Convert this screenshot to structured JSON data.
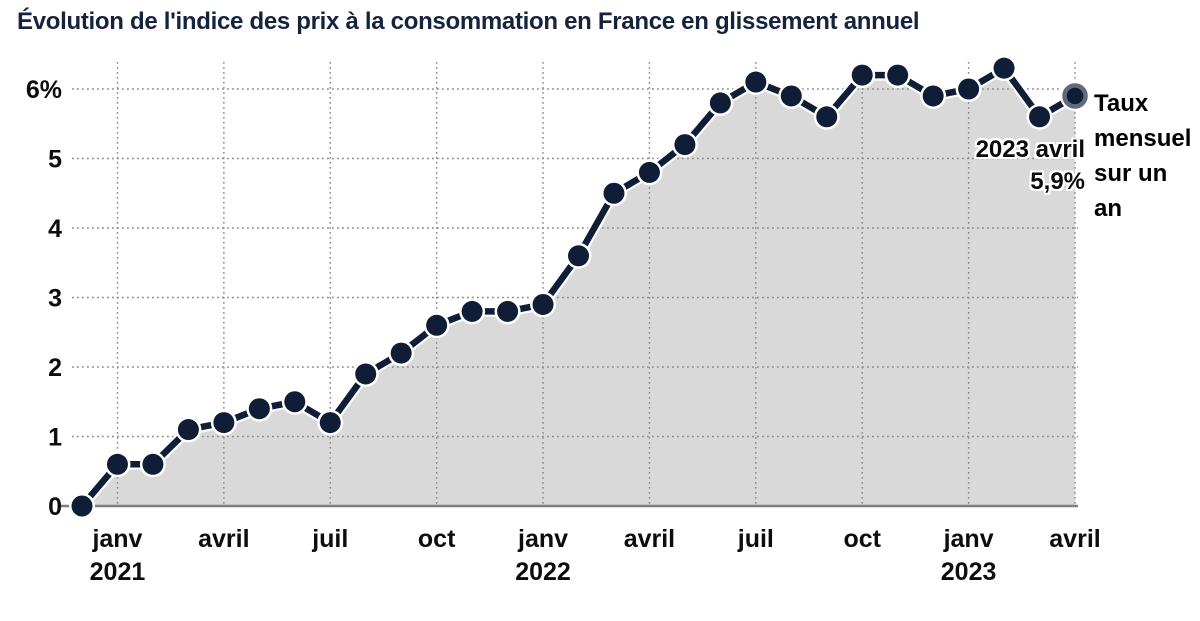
{
  "header": {
    "title": "Évolution de l'indice des prix à la consommation en France en glissement annuel"
  },
  "annotation": {
    "date_label": "2023 avril",
    "value_label": "5,9%"
  },
  "side_label": {
    "text": "Taux mensuel sur un an"
  },
  "chart_data": {
    "type": "area",
    "title": "Évolution de l'indice des prix à la consommation en France en glissement annuel",
    "xlabel": "",
    "ylabel": "Taux mensuel sur un an (%)",
    "ylim": [
      0,
      6.5
    ],
    "grid": true,
    "legend_position": "none",
    "x": [
      "déc 2020",
      "janv 2021",
      "févr 2021",
      "mars 2021",
      "avril 2021",
      "mai 2021",
      "juin 2021",
      "juil 2021",
      "août 2021",
      "sept 2021",
      "oct 2021",
      "nov 2021",
      "déc 2021",
      "janv 2022",
      "févr 2022",
      "mars 2022",
      "avril 2022",
      "mai 2022",
      "juin 2022",
      "juil 2022",
      "août 2022",
      "sept 2022",
      "oct 2022",
      "nov 2022",
      "déc 2022",
      "janv 2023",
      "févr 2023",
      "mars 2023",
      "avril 2023"
    ],
    "values": [
      0.0,
      0.6,
      0.6,
      1.1,
      1.2,
      1.4,
      1.5,
      1.2,
      1.9,
      2.2,
      2.6,
      2.8,
      2.8,
      2.9,
      3.6,
      4.5,
      4.8,
      5.2,
      5.8,
      6.1,
      5.9,
      5.6,
      6.2,
      6.2,
      5.9,
      6.0,
      6.3,
      5.6,
      5.9
    ],
    "x_ticks": [
      {
        "index": 1,
        "label": "janv",
        "year": "2021"
      },
      {
        "index": 4,
        "label": "avril",
        "year": ""
      },
      {
        "index": 7,
        "label": "juil",
        "year": ""
      },
      {
        "index": 10,
        "label": "oct",
        "year": ""
      },
      {
        "index": 13,
        "label": "janv",
        "year": "2022"
      },
      {
        "index": 16,
        "label": "avril",
        "year": ""
      },
      {
        "index": 19,
        "label": "juil",
        "year": ""
      },
      {
        "index": 22,
        "label": "oct",
        "year": ""
      },
      {
        "index": 25,
        "label": "janv",
        "year": "2023"
      },
      {
        "index": 28,
        "label": "avril",
        "year": ""
      }
    ],
    "y_ticks": [
      "0",
      "1",
      "2",
      "3",
      "4",
      "5",
      "6%"
    ],
    "highlight_last_point": true,
    "colors": {
      "line": "#101d36",
      "point": "#101d36",
      "point_halo": "#ffffff",
      "highlight_ring": "#5f6a7a",
      "area_fill": "#d9d9d9",
      "grid": "#8a8a8a",
      "baseline": "#7f7f7f",
      "title": "#16233d",
      "tick_text": "#0d0d0d"
    }
  }
}
